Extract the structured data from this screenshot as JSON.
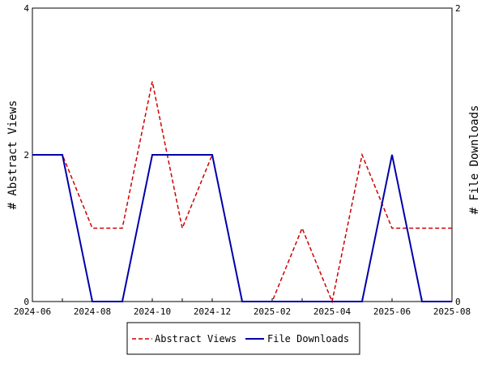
{
  "chart_data": {
    "type": "line",
    "title": "",
    "x_axis": {
      "type": "date",
      "range": [
        "2024-06",
        "2025-08"
      ],
      "tick_labels": [
        "2024-06",
        "2024-08",
        "2024-10",
        "2024-12",
        "2025-02",
        "2025-04",
        "2025-06",
        "2025-08"
      ]
    },
    "y_left": {
      "label": "# Abstract Views",
      "ylim": [
        0,
        4
      ],
      "tick_labels": [
        "0",
        "2",
        "4"
      ]
    },
    "y_right": {
      "label": "# File Downloads",
      "ylim": [
        0,
        2
      ],
      "tick_labels": [
        "0",
        "2"
      ]
    },
    "x": [
      "2024-06",
      "2024-07",
      "2024-08",
      "2024-09",
      "2024-10",
      "2024-11",
      "2024-12",
      "2025-01",
      "2025-02",
      "2025-03",
      "2025-04",
      "2025-05",
      "2025-06",
      "2025-07",
      "2025-08"
    ],
    "series": [
      {
        "name": "Abstract Views",
        "axis": "left",
        "color": "#cc0000",
        "style": "dashed",
        "values": [
          2,
          2,
          1,
          1,
          3,
          1,
          2,
          0,
          0,
          1,
          0,
          2,
          1,
          1,
          1
        ]
      },
      {
        "name": "File Downloads",
        "axis": "right",
        "color": "#0000aa",
        "style": "solid",
        "values": [
          1,
          1,
          0,
          0,
          1,
          1,
          1,
          0,
          0,
          0,
          0,
          0,
          1,
          0,
          0
        ]
      }
    ],
    "grid": false,
    "legend_position": "bottom"
  }
}
